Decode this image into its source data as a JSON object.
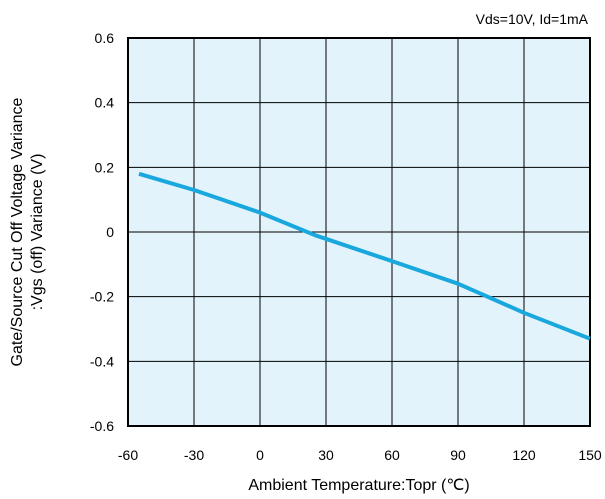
{
  "chart_data": {
    "type": "line",
    "title": "",
    "condition": "Vds=10V, Id=1mA",
    "xlabel": "Ambient Temperature:Topr (℃)",
    "ylabel_line1": "Gate/Source Cut Off Voltage Variance",
    "ylabel_line2": ":Vgs (off) Variance (V)",
    "xlim": [
      -60,
      150
    ],
    "ylim": [
      -0.6,
      0.6
    ],
    "x_ticks": [
      -60,
      -30,
      0,
      30,
      60,
      90,
      120,
      150
    ],
    "x_tick_labels": [
      "-60",
      "-30",
      "0",
      "30",
      "60",
      "90",
      "120",
      "150"
    ],
    "y_ticks": [
      0.6,
      0.4,
      0.2,
      0,
      -0.2,
      -0.4,
      -0.6
    ],
    "y_tick_labels": [
      "0.6",
      "0.4",
      "0.2",
      "0",
      "-0.2",
      "-0.4",
      "-0.6"
    ],
    "grid": true,
    "colors": {
      "plot_background": "#E3F3FB",
      "line": "#18A8DE",
      "grid": "#000000"
    },
    "series": [
      {
        "x": [
          -55,
          -30,
          0,
          25,
          60,
          90,
          120,
          150
        ],
        "y": [
          0.18,
          0.13,
          0.06,
          -0.01,
          -0.09,
          -0.16,
          -0.25,
          -0.33
        ]
      }
    ]
  }
}
